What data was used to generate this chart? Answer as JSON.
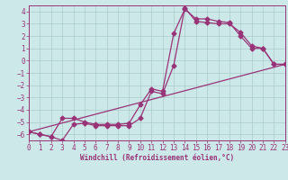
{
  "xlabel": "Windchill (Refroidissement éolien,°C)",
  "background_color": "#cce8e8",
  "grid_color": "#aacccc",
  "line_color": "#993377",
  "xlim": [
    0,
    23
  ],
  "ylim": [
    -6.5,
    4.5
  ],
  "xticks": [
    0,
    1,
    2,
    3,
    4,
    5,
    6,
    7,
    8,
    9,
    10,
    11,
    12,
    13,
    14,
    15,
    16,
    17,
    18,
    19,
    20,
    21,
    22,
    23
  ],
  "yticks": [
    -6,
    -5,
    -4,
    -3,
    -2,
    -1,
    0,
    1,
    2,
    3,
    4
  ],
  "line1_x": [
    0,
    1,
    2,
    3,
    4,
    5,
    6,
    7,
    8,
    9,
    10,
    11,
    12,
    13,
    14,
    15,
    16,
    17,
    18,
    19,
    20,
    21,
    22,
    23
  ],
  "line1_y": [
    -5.8,
    -6.0,
    -6.2,
    -6.5,
    -5.2,
    -5.1,
    -5.3,
    -5.3,
    -5.3,
    -5.3,
    -4.7,
    -2.5,
    -2.7,
    -0.4,
    4.3,
    3.2,
    3.1,
    3.0,
    3.0,
    2.3,
    1.2,
    1.0,
    -0.3,
    -0.3
  ],
  "line2_x": [
    0,
    1,
    2,
    3,
    4,
    5,
    6,
    7,
    8,
    9,
    10,
    11,
    12,
    13,
    14,
    15,
    16,
    17,
    18,
    19,
    20,
    21,
    22,
    23
  ],
  "line2_y": [
    -5.8,
    -6.0,
    -6.2,
    -4.7,
    -4.7,
    -5.0,
    -5.2,
    -5.2,
    -5.2,
    -5.1,
    -3.6,
    -2.3,
    -2.5,
    2.2,
    4.2,
    3.4,
    3.4,
    3.2,
    3.1,
    2.0,
    1.0,
    1.0,
    -0.3,
    -0.3
  ],
  "line3_x": [
    0,
    23
  ],
  "line3_y": [
    -5.8,
    -0.3
  ],
  "tick_fontsize": 5.5,
  "xlabel_fontsize": 5.5,
  "marker_size": 2.5,
  "line_width": 0.9
}
